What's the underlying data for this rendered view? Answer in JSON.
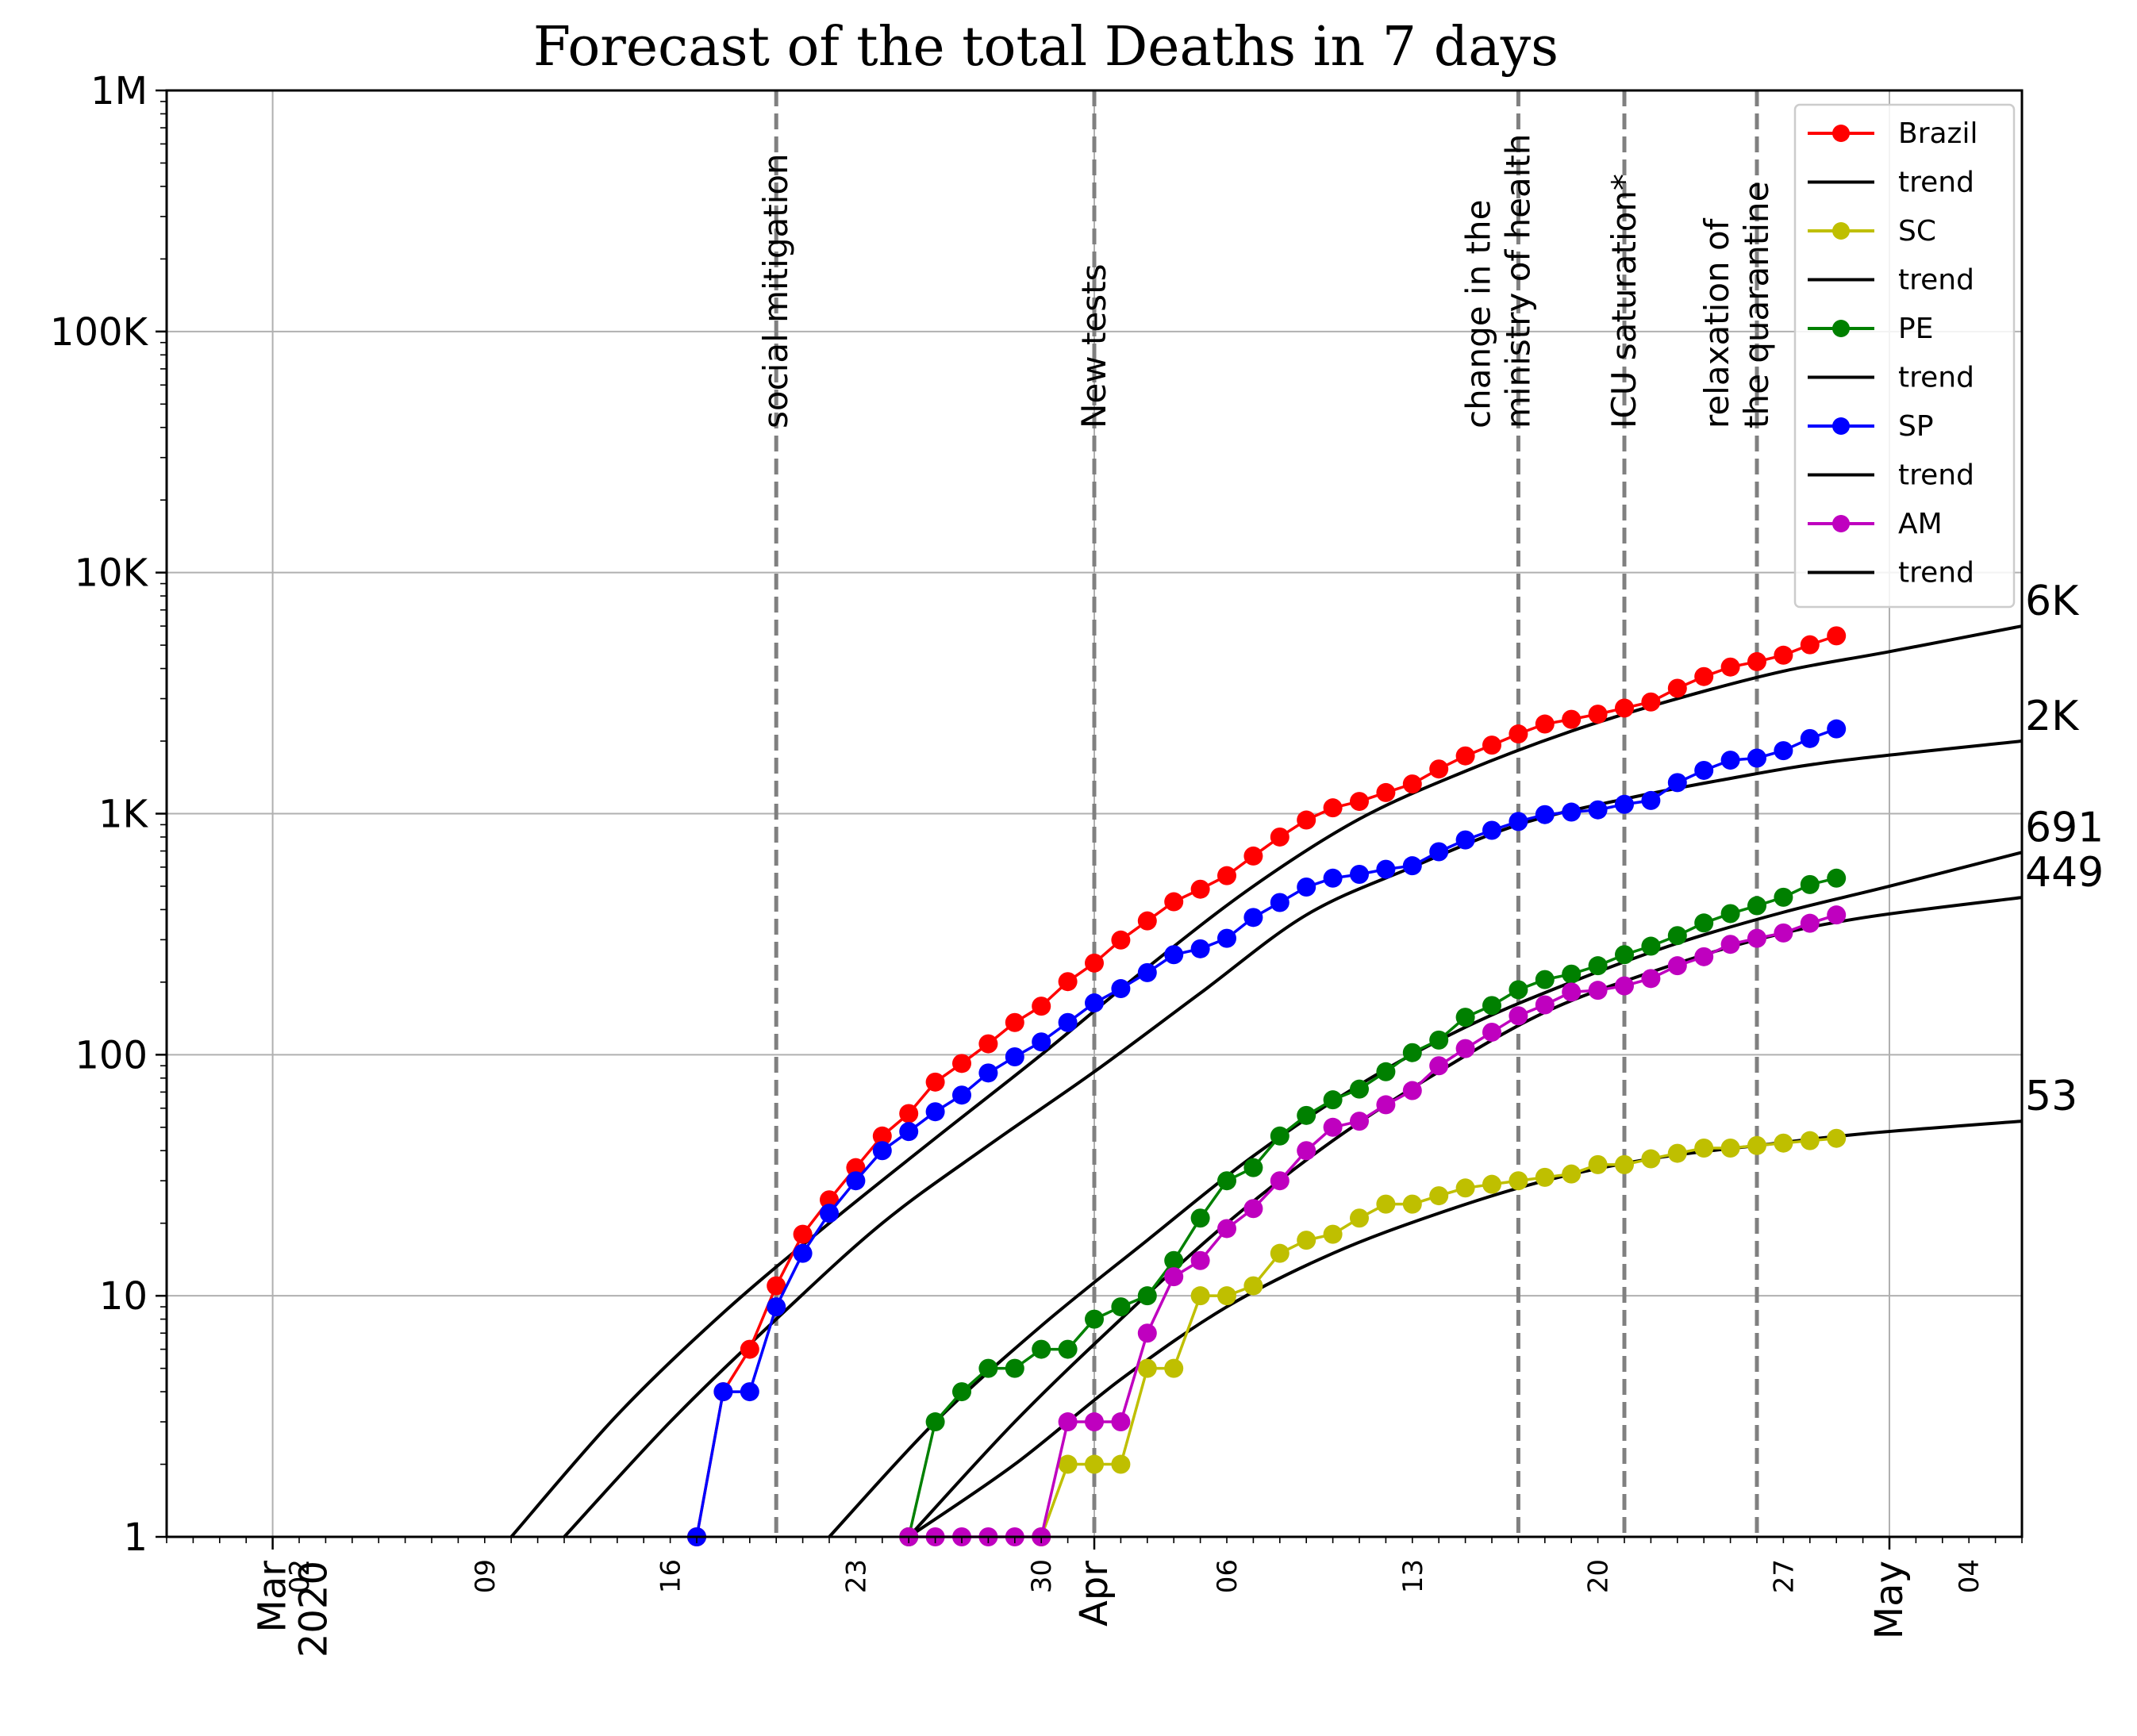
{
  "chart_data": {
    "type": "line",
    "title": "Forecast of the total Deaths in 7 days",
    "yscale": "log",
    "ylim": [
      1,
      1000000
    ],
    "xlim": [
      "2020-02-26",
      "2020-05-06"
    ],
    "grid": true,
    "legend_position": "top-right",
    "y_ticks": [
      {
        "value": 1,
        "label": "1"
      },
      {
        "value": 10,
        "label": "10"
      },
      {
        "value": 100,
        "label": "100"
      },
      {
        "value": 1000,
        "label": "1K"
      },
      {
        "value": 10000,
        "label": "10K"
      },
      {
        "value": 100000,
        "label": "100K"
      },
      {
        "value": 1000000,
        "label": "1M"
      }
    ],
    "x_major_ticks": [
      {
        "date": "2020-03-01",
        "label": "Mar\n2020"
      },
      {
        "date": "2020-04-01",
        "label": "Apr"
      },
      {
        "date": "2020-05-01",
        "label": "May"
      }
    ],
    "x_minor_ticks": [
      {
        "date": "2020-03-02",
        "label": "02"
      },
      {
        "date": "2020-03-09",
        "label": "09"
      },
      {
        "date": "2020-03-16",
        "label": "16"
      },
      {
        "date": "2020-03-23",
        "label": "23"
      },
      {
        "date": "2020-03-30",
        "label": "30"
      },
      {
        "date": "2020-04-06",
        "label": "06"
      },
      {
        "date": "2020-04-13",
        "label": "13"
      },
      {
        "date": "2020-04-20",
        "label": "20"
      },
      {
        "date": "2020-04-27",
        "label": "27"
      },
      {
        "date": "2020-05-04",
        "label": "04"
      }
    ],
    "events": [
      {
        "date": "2020-03-20",
        "label": "social mitigation"
      },
      {
        "date": "2020-04-01",
        "label": "New tests"
      },
      {
        "date": "2020-04-17",
        "label": "change in the\nministry of health"
      },
      {
        "date": "2020-04-21",
        "label": "ICU saturation*"
      },
      {
        "date": "2020-04-26",
        "label": "relaxation of\nthe quarantine"
      }
    ],
    "series": [
      {
        "name": "Brazil",
        "color": "#ff0000",
        "dates": [
          "2020-03-17",
          "2020-03-18",
          "2020-03-19",
          "2020-03-20",
          "2020-03-21",
          "2020-03-22",
          "2020-03-23",
          "2020-03-24",
          "2020-03-25",
          "2020-03-26",
          "2020-03-27",
          "2020-03-28",
          "2020-03-29",
          "2020-03-30",
          "2020-03-31",
          "2020-04-01",
          "2020-04-02",
          "2020-04-03",
          "2020-04-04",
          "2020-04-05",
          "2020-04-06",
          "2020-04-07",
          "2020-04-08",
          "2020-04-09",
          "2020-04-10",
          "2020-04-11",
          "2020-04-12",
          "2020-04-13",
          "2020-04-14",
          "2020-04-15",
          "2020-04-16",
          "2020-04-17",
          "2020-04-18",
          "2020-04-19",
          "2020-04-20",
          "2020-04-21",
          "2020-04-22",
          "2020-04-23",
          "2020-04-24",
          "2020-04-25",
          "2020-04-26",
          "2020-04-27",
          "2020-04-28",
          "2020-04-29"
        ],
        "values": [
          1,
          4,
          6,
          11,
          18,
          25,
          34,
          46,
          57,
          77,
          92,
          111,
          136,
          159,
          201,
          240,
          299,
          359,
          431,
          486,
          553,
          667,
          800,
          941,
          1057,
          1124,
          1223,
          1328,
          1532,
          1736,
          1924,
          2141,
          2354,
          2462,
          2587,
          2741,
          2906,
          3313,
          3704,
          4057,
          4271,
          4543,
          5017,
          5466
        ]
      },
      {
        "name": "SC",
        "color": "#bfbf00",
        "dates": [
          "2020-03-30",
          "2020-03-31",
          "2020-04-01",
          "2020-04-02",
          "2020-04-03",
          "2020-04-04",
          "2020-04-05",
          "2020-04-06",
          "2020-04-07",
          "2020-04-08",
          "2020-04-09",
          "2020-04-10",
          "2020-04-11",
          "2020-04-12",
          "2020-04-13",
          "2020-04-14",
          "2020-04-15",
          "2020-04-16",
          "2020-04-17",
          "2020-04-18",
          "2020-04-19",
          "2020-04-20",
          "2020-04-21",
          "2020-04-22",
          "2020-04-23",
          "2020-04-24",
          "2020-04-25",
          "2020-04-26",
          "2020-04-27",
          "2020-04-28",
          "2020-04-29"
        ],
        "values": [
          1,
          2,
          2,
          2,
          5,
          5,
          10,
          10,
          11,
          15,
          17,
          18,
          21,
          24,
          24,
          26,
          28,
          29,
          30,
          31,
          32,
          35,
          35,
          37,
          39,
          41,
          41,
          42,
          43,
          44,
          45
        ]
      },
      {
        "name": "PE",
        "color": "#008000",
        "dates": [
          "2020-03-25",
          "2020-03-26",
          "2020-03-27",
          "2020-03-28",
          "2020-03-29",
          "2020-03-30",
          "2020-03-31",
          "2020-04-01",
          "2020-04-02",
          "2020-04-03",
          "2020-04-04",
          "2020-04-05",
          "2020-04-06",
          "2020-04-07",
          "2020-04-08",
          "2020-04-09",
          "2020-04-10",
          "2020-04-11",
          "2020-04-12",
          "2020-04-13",
          "2020-04-14",
          "2020-04-15",
          "2020-04-16",
          "2020-04-17",
          "2020-04-18",
          "2020-04-19",
          "2020-04-20",
          "2020-04-21",
          "2020-04-22",
          "2020-04-23",
          "2020-04-24",
          "2020-04-25",
          "2020-04-26",
          "2020-04-27",
          "2020-04-28",
          "2020-04-29"
        ],
        "values": [
          1,
          3,
          4,
          5,
          5,
          6,
          6,
          8,
          9,
          10,
          14,
          21,
          30,
          34,
          46,
          56,
          65,
          72,
          85,
          102,
          115,
          143,
          160,
          186,
          205,
          216,
          234,
          260,
          282,
          312,
          352,
          385,
          415,
          450,
          508,
          540
        ]
      },
      {
        "name": "SP",
        "color": "#0000ff",
        "dates": [
          "2020-03-17",
          "2020-03-18",
          "2020-03-19",
          "2020-03-20",
          "2020-03-21",
          "2020-03-22",
          "2020-03-23",
          "2020-03-24",
          "2020-03-25",
          "2020-03-26",
          "2020-03-27",
          "2020-03-28",
          "2020-03-29",
          "2020-03-30",
          "2020-03-31",
          "2020-04-01",
          "2020-04-02",
          "2020-04-03",
          "2020-04-04",
          "2020-04-05",
          "2020-04-06",
          "2020-04-07",
          "2020-04-08",
          "2020-04-09",
          "2020-04-10",
          "2020-04-11",
          "2020-04-12",
          "2020-04-13",
          "2020-04-14",
          "2020-04-15",
          "2020-04-16",
          "2020-04-17",
          "2020-04-18",
          "2020-04-19",
          "2020-04-20",
          "2020-04-21",
          "2020-04-22",
          "2020-04-23",
          "2020-04-24",
          "2020-04-25",
          "2020-04-26",
          "2020-04-27",
          "2020-04-28",
          "2020-04-29"
        ],
        "values": [
          1,
          4,
          4,
          9,
          15,
          22,
          30,
          40,
          48,
          58,
          68,
          84,
          98,
          113,
          136,
          164,
          188,
          219,
          260,
          275,
          304,
          371,
          428,
          496,
          540,
          560,
          588,
          608,
          695,
          778,
          853,
          928,
          991,
          1015,
          1037,
          1093,
          1134,
          1345,
          1512,
          1667,
          1700,
          1825,
          2049,
          2247
        ]
      },
      {
        "name": "AM",
        "color": "#bf00bf",
        "dates": [
          "2020-03-25",
          "2020-03-26",
          "2020-03-27",
          "2020-03-28",
          "2020-03-29",
          "2020-03-30",
          "2020-03-31",
          "2020-04-01",
          "2020-04-02",
          "2020-04-03",
          "2020-04-04",
          "2020-04-05",
          "2020-04-06",
          "2020-04-07",
          "2020-04-08",
          "2020-04-09",
          "2020-04-10",
          "2020-04-11",
          "2020-04-12",
          "2020-04-13",
          "2020-04-14",
          "2020-04-15",
          "2020-04-16",
          "2020-04-17",
          "2020-04-18",
          "2020-04-19",
          "2020-04-20",
          "2020-04-21",
          "2020-04-22",
          "2020-04-23",
          "2020-04-24",
          "2020-04-25",
          "2020-04-26",
          "2020-04-27",
          "2020-04-28",
          "2020-04-29"
        ],
        "values": [
          1,
          1,
          1,
          1,
          1,
          1,
          3,
          3,
          3,
          7,
          12,
          14,
          19,
          23,
          30,
          40,
          50,
          53,
          62,
          71,
          90,
          106,
          124,
          145,
          161,
          182,
          185,
          193,
          207,
          234,
          255,
          287,
          304,
          320,
          351,
          380
        ]
      }
    ],
    "trends": [
      {
        "series": "Brazil",
        "final_label": "6K",
        "dates": [
          "2020-03-10",
          "2020-03-14",
          "2020-03-18",
          "2020-03-22",
          "2020-03-26",
          "2020-03-30",
          "2020-04-03",
          "2020-04-07",
          "2020-04-11",
          "2020-04-15",
          "2020-04-19",
          "2020-04-23",
          "2020-04-27",
          "2020-05-01",
          "2020-05-06"
        ],
        "values": [
          1,
          3.2,
          8.5,
          20,
          45,
          100,
          230,
          500,
          950,
          1500,
          2200,
          3000,
          3900,
          4700,
          6000
        ]
      },
      {
        "series": "SP",
        "final_label": "2K",
        "dates": [
          "2020-03-12",
          "2020-03-16",
          "2020-03-20",
          "2020-03-24",
          "2020-03-28",
          "2020-04-01",
          "2020-04-05",
          "2020-04-09",
          "2020-04-13",
          "2020-04-17",
          "2020-04-21",
          "2020-04-25",
          "2020-04-29",
          "2020-05-06"
        ],
        "values": [
          1,
          3,
          8,
          20,
          42,
          85,
          180,
          380,
          600,
          900,
          1150,
          1400,
          1650,
          2000
        ]
      },
      {
        "series": "PE",
        "final_label": "691",
        "dates": [
          "2020-03-22",
          "2020-03-26",
          "2020-03-30",
          "2020-04-03",
          "2020-04-07",
          "2020-04-11",
          "2020-04-15",
          "2020-04-19",
          "2020-04-23",
          "2020-04-27",
          "2020-05-01",
          "2020-05-06"
        ],
        "values": [
          1,
          3,
          7.5,
          17,
          38,
          75,
          130,
          200,
          290,
          390,
          500,
          691
        ]
      },
      {
        "series": "AM",
        "final_label": "449",
        "dates": [
          "2020-03-25",
          "2020-03-29",
          "2020-04-02",
          "2020-04-06",
          "2020-04-10",
          "2020-04-14",
          "2020-04-18",
          "2020-04-22",
          "2020-04-26",
          "2020-04-30",
          "2020-05-06"
        ],
        "values": [
          1,
          3,
          8,
          20,
          44,
          85,
          150,
          220,
          300,
          370,
          449
        ]
      },
      {
        "series": "SC",
        "final_label": "53",
        "dates": [
          "2020-03-25",
          "2020-03-29",
          "2020-04-02",
          "2020-04-06",
          "2020-04-10",
          "2020-04-14",
          "2020-04-18",
          "2020-04-22",
          "2020-04-26",
          "2020-04-30",
          "2020-05-06"
        ],
        "values": [
          1,
          2,
          4.5,
          9,
          15,
          22,
          30,
          37,
          42,
          47,
          53
        ]
      }
    ],
    "legend": [
      {
        "label": "Brazil",
        "kind": "marker",
        "color": "#ff0000"
      },
      {
        "label": "trend",
        "kind": "line",
        "color": "#000000"
      },
      {
        "label": "SC",
        "kind": "marker",
        "color": "#bfbf00"
      },
      {
        "label": "trend",
        "kind": "line",
        "color": "#000000"
      },
      {
        "label": "PE",
        "kind": "marker",
        "color": "#008000"
      },
      {
        "label": "trend",
        "kind": "line",
        "color": "#000000"
      },
      {
        "label": "SP",
        "kind": "marker",
        "color": "#0000ff"
      },
      {
        "label": "trend",
        "kind": "line",
        "color": "#000000"
      },
      {
        "label": "AM",
        "kind": "marker",
        "color": "#bf00bf"
      },
      {
        "label": "trend",
        "kind": "line",
        "color": "#000000"
      }
    ]
  }
}
